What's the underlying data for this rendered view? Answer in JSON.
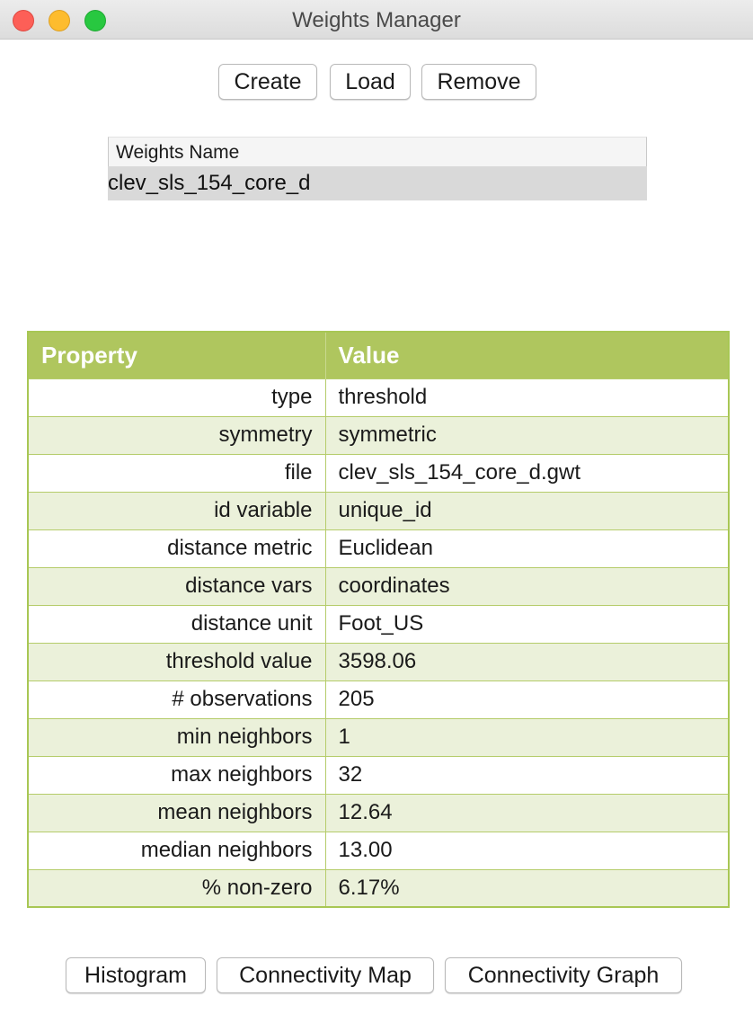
{
  "window": {
    "title": "Weights Manager"
  },
  "toolbar": {
    "create": "Create",
    "load": "Load",
    "remove": "Remove"
  },
  "weights_list": {
    "header": "Weights Name",
    "items": [
      "clev_sls_154_core_d"
    ],
    "selected": "clev_sls_154_core_d"
  },
  "properties": {
    "col_property": "Property",
    "col_value": "Value",
    "rows": [
      {
        "property": "type",
        "value": "threshold"
      },
      {
        "property": "symmetry",
        "value": "symmetric"
      },
      {
        "property": "file",
        "value": "clev_sls_154_core_d.gwt"
      },
      {
        "property": "id variable",
        "value": "unique_id"
      },
      {
        "property": "distance metric",
        "value": "Euclidean"
      },
      {
        "property": "distance vars",
        "value": "coordinates"
      },
      {
        "property": "distance unit",
        "value": "Foot_US"
      },
      {
        "property": "threshold value",
        "value": "3598.06"
      },
      {
        "property": "# observations",
        "value": "205"
      },
      {
        "property": "min neighbors",
        "value": "1"
      },
      {
        "property": "max neighbors",
        "value": "32"
      },
      {
        "property": "mean neighbors",
        "value": "12.64"
      },
      {
        "property": "median neighbors",
        "value": "13.00"
      },
      {
        "property": "% non-zero",
        "value": "6.17%"
      }
    ]
  },
  "bottom_buttons": {
    "histogram": "Histogram",
    "connectivity_map": "Connectivity Map",
    "connectivity_graph": "Connectivity Graph"
  },
  "colors": {
    "header_green": "#afc65e",
    "row_alt": "#ebf1da",
    "border_green": "#a8c754",
    "selection_gray": "#d9d9d9"
  }
}
